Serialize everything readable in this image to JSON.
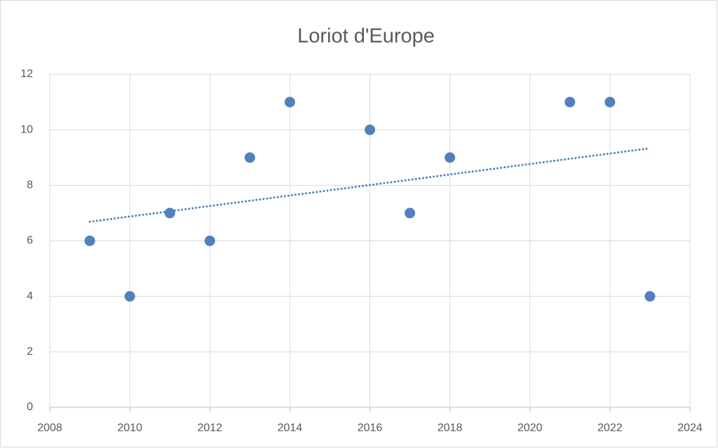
{
  "chart_data": {
    "type": "scatter",
    "title": "Loriot d'Europe",
    "series": [
      {
        "color": "#4f81bd",
        "x": [
          2009,
          2010,
          2011,
          2012,
          2013,
          2014,
          2016,
          2017,
          2018,
          2021,
          2022,
          2023
        ],
        "values": [
          6,
          4,
          7,
          6,
          9,
          11,
          10,
          7,
          9,
          11,
          11,
          4
        ]
      }
    ],
    "trendline": "linear",
    "xlim": [
      2008,
      2024
    ],
    "xticks": [
      2008,
      2010,
      2012,
      2014,
      2016,
      2018,
      2020,
      2022,
      2024
    ],
    "ylim": [
      0,
      12
    ],
    "yticks": [
      0,
      2,
      4,
      6,
      8,
      10,
      12
    ],
    "grid": true
  }
}
